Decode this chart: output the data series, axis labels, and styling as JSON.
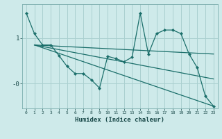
{
  "xlabel": "Humidex (Indice chaleur)",
  "bg_color": "#ceeaea",
  "grid_color": "#aad0d0",
  "line_color": "#1a6e6a",
  "x_ticks": [
    0,
    1,
    2,
    3,
    4,
    5,
    6,
    7,
    8,
    9,
    10,
    11,
    12,
    13,
    14,
    15,
    16,
    17,
    18,
    19,
    20,
    21,
    22,
    23
  ],
  "ylim": [
    -0.55,
    1.75
  ],
  "xlim": [
    -0.5,
    23.5
  ],
  "main_line": {
    "x": [
      0,
      1,
      2,
      3,
      4,
      5,
      6,
      7,
      8,
      9,
      10,
      11,
      12,
      13,
      14,
      15,
      16,
      17,
      18,
      19,
      20,
      21,
      22,
      23
    ],
    "y": [
      1.55,
      1.1,
      0.85,
      0.85,
      0.62,
      0.38,
      0.22,
      0.22,
      0.08,
      -0.1,
      0.6,
      0.55,
      0.48,
      0.58,
      1.55,
      0.65,
      1.1,
      1.18,
      1.18,
      1.1,
      0.65,
      0.35,
      -0.28,
      -0.5
    ]
  },
  "straight_lines": [
    {
      "x": [
        1,
        23
      ],
      "y": [
        0.85,
        0.65
      ]
    },
    {
      "x": [
        1,
        23
      ],
      "y": [
        0.85,
        0.1
      ]
    },
    {
      "x": [
        1,
        23
      ],
      "y": [
        0.85,
        -0.5
      ]
    }
  ],
  "ytick_positions": [
    1.0,
    0.0
  ],
  "ytick_labels": [
    "1",
    "-0"
  ]
}
